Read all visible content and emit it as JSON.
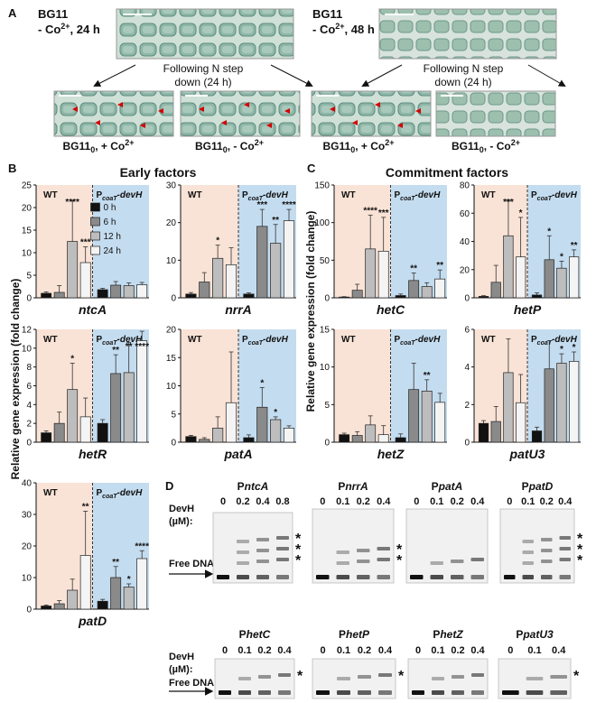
{
  "panels": {
    "a": "A",
    "b": "B",
    "c": "C",
    "d": "D"
  },
  "panel_a": {
    "top_left": {
      "line1": "BG11",
      "line2": "- Co",
      "sup": "2+",
      "line2b": ", 24 h"
    },
    "top_right": {
      "line1": "BG11",
      "line2": "- Co",
      "sup": "2+",
      "line2b": ", 48 h"
    },
    "arrow_note_left": {
      "line1": "Following N step",
      "line2": "down (24 h)"
    },
    "arrow_note_right": {
      "line1": "Following N step",
      "line2": "down (24 h)"
    },
    "micrographs": [
      {
        "base": "BG11",
        "sub": "0",
        "rest": ", + Co",
        "sup": "2+"
      },
      {
        "base": "BG11",
        "sub": "0",
        "rest": ", - Co",
        "sup": "2+"
      },
      {
        "base": "BG11",
        "sub": "0",
        "rest": ", + Co",
        "sup": "2+"
      },
      {
        "base": "BG11",
        "sub": "0",
        "rest": ", - Co",
        "sup": "2+"
      }
    ]
  },
  "panel_b_title": "Early factors",
  "panel_c_title": "Commitment factors",
  "ylabel": "Relative gene expression (fold change)",
  "wt_label": "WT",
  "mutant_label": {
    "p": "P",
    "sub": "coaT",
    "suffix": "-devH"
  },
  "legend": [
    "0 h",
    "6 h",
    "12 h",
    "24 h"
  ],
  "colors": {
    "wt_bg": "#f9e3d6",
    "mut_bg": "#c4dcef",
    "bar0": "#111111",
    "bar6": "#8a8a8a",
    "bar12": "#bdbdbd",
    "bar24": "#f4f4f4",
    "star": "#d40000"
  },
  "chart_data": [
    {
      "type": "bar",
      "gene": "ntcA",
      "ylim": [
        0,
        25
      ],
      "yticks": [
        "0",
        "5",
        "10",
        "15",
        "20",
        "25"
      ],
      "series_names": [
        "0 h",
        "6 h",
        "12 h",
        "24 h"
      ],
      "groups": [
        {
          "name": "WT",
          "values": [
            1.0,
            1.2,
            12.5,
            7.8
          ],
          "errors": [
            0.3,
            1.5,
            9.0,
            3.5
          ],
          "sig": [
            "",
            "",
            "****",
            "***"
          ]
        },
        {
          "name": "PcoaT-devH",
          "values": [
            1.8,
            2.8,
            2.7,
            2.9
          ],
          "errors": [
            0.3,
            0.8,
            0.6,
            0.5
          ],
          "sig": [
            "",
            "",
            "",
            ""
          ]
        }
      ]
    },
    {
      "type": "bar",
      "gene": "nrrA",
      "ylim": [
        0,
        30
      ],
      "yticks": [
        "0",
        "10",
        "20",
        "30"
      ],
      "series_names": [
        "0 h",
        "6 h",
        "12 h",
        "24 h"
      ],
      "groups": [
        {
          "name": "WT",
          "values": [
            1.0,
            4.2,
            10.5,
            8.8
          ],
          "errors": [
            0.4,
            2.5,
            3.5,
            4.5
          ],
          "sig": [
            "",
            "",
            "*",
            ""
          ]
        },
        {
          "name": "PcoaT-devH",
          "values": [
            1.0,
            19.0,
            14.5,
            20.5
          ],
          "errors": [
            0.3,
            4.5,
            5.0,
            3.0
          ],
          "sig": [
            "",
            "***",
            "**",
            "****"
          ]
        }
      ]
    },
    {
      "type": "bar",
      "gene": "hetR",
      "ylim": [
        0,
        12
      ],
      "yticks": [
        "0",
        "2",
        "4",
        "6",
        "8",
        "10",
        "12"
      ],
      "series_names": [
        "0 h",
        "6 h",
        "12 h",
        "24 h"
      ],
      "groups": [
        {
          "name": "WT",
          "values": [
            1.0,
            2.0,
            5.6,
            2.7
          ],
          "errors": [
            0.2,
            1.2,
            2.8,
            2.0
          ],
          "sig": [
            "",
            "",
            "*",
            ""
          ]
        },
        {
          "name": "PcoaT-devH",
          "values": [
            2.0,
            7.3,
            7.4,
            10.8
          ],
          "errors": [
            0.4,
            2.0,
            3.2,
            1.0
          ],
          "sig": [
            "",
            "**",
            "**",
            "****"
          ]
        }
      ]
    },
    {
      "type": "bar",
      "gene": "patA",
      "ylim": [
        0,
        20
      ],
      "yticks": [
        "0",
        "5",
        "10",
        "15",
        "20"
      ],
      "series_names": [
        "0 h",
        "6 h",
        "12 h",
        "24 h"
      ],
      "groups": [
        {
          "name": "WT",
          "values": [
            1.0,
            0.5,
            2.5,
            7.0
          ],
          "errors": [
            0.2,
            0.3,
            2.0,
            9.0
          ],
          "sig": [
            "",
            "",
            "",
            ""
          ]
        },
        {
          "name": "PcoaT-devH",
          "values": [
            0.8,
            6.2,
            4.0,
            2.5
          ],
          "errors": [
            0.5,
            3.5,
            0.5,
            0.4
          ],
          "sig": [
            "",
            "*",
            "*",
            ""
          ]
        }
      ]
    },
    {
      "type": "bar",
      "gene": "patD",
      "ylim": [
        0,
        40
      ],
      "yticks": [
        "0",
        "10",
        "20",
        "30",
        "40"
      ],
      "series_names": [
        "0 h",
        "6 h",
        "12 h",
        "24 h"
      ],
      "groups": [
        {
          "name": "WT",
          "values": [
            1.0,
            1.7,
            6.0,
            17.0
          ],
          "errors": [
            0.3,
            1.0,
            3.5,
            14.0
          ],
          "sig": [
            "",
            "",
            "",
            "**"
          ]
        },
        {
          "name": "PcoaT-devH",
          "values": [
            2.5,
            10.0,
            7.0,
            16.0
          ],
          "errors": [
            0.6,
            3.5,
            1.0,
            2.5
          ],
          "sig": [
            "",
            "**",
            "*",
            "****"
          ]
        }
      ]
    },
    {
      "type": "bar",
      "gene": "hetC",
      "ylim": [
        0,
        150
      ],
      "yticks": [
        "0",
        "50",
        "100",
        "150"
      ],
      "series_names": [
        "0 h",
        "6 h",
        "12 h",
        "24 h"
      ],
      "groups": [
        {
          "name": "WT",
          "values": [
            1.0,
            10.0,
            65.0,
            62.0
          ],
          "errors": [
            0.5,
            8.0,
            45.0,
            45.0
          ],
          "sig": [
            "",
            "",
            "****",
            "***"
          ]
        },
        {
          "name": "PcoaT-devH",
          "values": [
            3.0,
            23.0,
            15.0,
            25.0
          ],
          "errors": [
            2.0,
            10.0,
            5.0,
            12.0
          ],
          "sig": [
            "",
            "**",
            "",
            "**"
          ]
        }
      ]
    },
    {
      "type": "bar",
      "gene": "hetP",
      "ylim": [
        0,
        80
      ],
      "yticks": [
        "0",
        "20",
        "40",
        "60",
        "80"
      ],
      "series_names": [
        "0 h",
        "6 h",
        "12 h",
        "24 h"
      ],
      "groups": [
        {
          "name": "WT",
          "values": [
            1.0,
            11.0,
            44.0,
            29.0
          ],
          "errors": [
            0.5,
            12.0,
            25.0,
            28.0
          ],
          "sig": [
            "",
            "",
            "***",
            "*"
          ]
        },
        {
          "name": "PcoaT-devH",
          "values": [
            2.0,
            27.0,
            21.0,
            29.0
          ],
          "errors": [
            1.5,
            17.0,
            5.0,
            5.0
          ],
          "sig": [
            "",
            "*",
            "*",
            "**"
          ]
        }
      ]
    },
    {
      "type": "bar",
      "gene": "hetZ",
      "ylim": [
        0,
        15
      ],
      "yticks": [
        "0",
        "5",
        "10",
        "15"
      ],
      "series_names": [
        "0 h",
        "6 h",
        "12 h",
        "24 h"
      ],
      "groups": [
        {
          "name": "WT",
          "values": [
            1.0,
            0.9,
            2.3,
            1.0
          ],
          "errors": [
            0.2,
            0.5,
            1.2,
            1.2
          ],
          "sig": [
            "",
            "",
            "",
            ""
          ]
        },
        {
          "name": "PcoaT-devH",
          "values": [
            0.6,
            7.0,
            6.8,
            5.3
          ],
          "errors": [
            0.5,
            3.5,
            1.5,
            1.2
          ],
          "sig": [
            "",
            "",
            "**",
            ""
          ]
        }
      ]
    },
    {
      "type": "bar",
      "gene": "patU3",
      "ylim": [
        0,
        6
      ],
      "yticks": [
        "0",
        "2",
        "4",
        "6"
      ],
      "series_names": [
        "0 h",
        "6 h",
        "12 h",
        "24 h"
      ],
      "groups": [
        {
          "name": "WT",
          "values": [
            1.0,
            1.1,
            3.7,
            2.1
          ],
          "errors": [
            0.15,
            0.8,
            1.8,
            1.5
          ],
          "sig": [
            "",
            "",
            "",
            ""
          ]
        },
        {
          "name": "PcoaT-devH",
          "values": [
            0.6,
            3.9,
            4.2,
            4.3
          ],
          "errors": [
            0.2,
            1.5,
            0.5,
            0.5
          ],
          "sig": [
            "",
            "",
            "*",
            "*"
          ]
        }
      ]
    }
  ],
  "emsa": {
    "devh_label_line1": "DevH",
    "devh_label_line2": "(µM):",
    "free_dna": "Free DNA",
    "gels": [
      {
        "promoter": "ntcA",
        "concs": [
          "0",
          "0.2",
          "0.4",
          "0.8"
        ],
        "marks": 3
      },
      {
        "promoter": "nrrA",
        "concs": [
          "0",
          "0.1",
          "0.2",
          "0.4"
        ],
        "marks": 2
      },
      {
        "promoter": "patA",
        "concs": [
          "0",
          "0.1",
          "0.2",
          "0.4"
        ],
        "marks": 0
      },
      {
        "promoter": "patD",
        "concs": [
          "0",
          "0.1",
          "0.2",
          "0.4"
        ],
        "marks": 3
      },
      {
        "promoter": "hetC",
        "concs": [
          "0",
          "0.1",
          "0.2",
          "0.4"
        ],
        "marks": 1
      },
      {
        "promoter": "hetP",
        "concs": [
          "0",
          "0.1",
          "0.2",
          "0.4"
        ],
        "marks": 1
      },
      {
        "promoter": "hetZ",
        "concs": [
          "0",
          "0.1",
          "0.2",
          "0.4"
        ],
        "marks": 0
      },
      {
        "promoter": "patU3",
        "concs": [
          "0",
          "0.1",
          "0.4"
        ],
        "marks": 1
      }
    ]
  }
}
